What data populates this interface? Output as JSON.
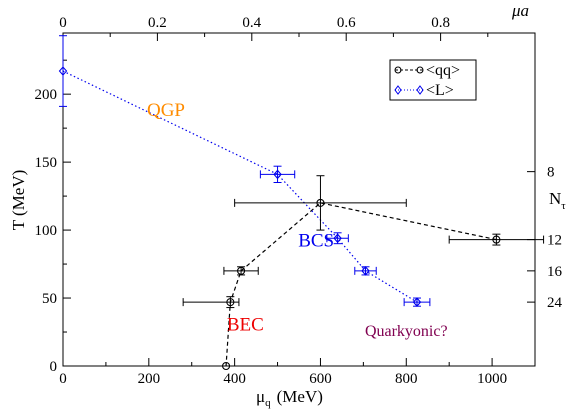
{
  "chart_data": {
    "type": "scatter",
    "x_axis": {
      "label": "μ",
      "label_sub": "q",
      "unit": "(MeV)",
      "range": [
        0,
        1100
      ],
      "ticks": [
        0,
        200,
        400,
        600,
        800,
        1000
      ],
      "tick_labels": [
        "0",
        "200",
        "400",
        "600",
        "800",
        "1000"
      ]
    },
    "y_axis": {
      "label": "T (MeV)",
      "range": [
        0,
        245
      ],
      "ticks": [
        0,
        50,
        100,
        150,
        200
      ],
      "tick_labels": [
        "0",
        "50",
        "100",
        "150",
        "200"
      ]
    },
    "top_axis": {
      "label": "μa",
      "range": [
        0,
        1.0
      ],
      "ticks": [
        0,
        0.2,
        0.4,
        0.6,
        0.8
      ],
      "tick_labels": [
        "0",
        "0.2",
        "0.4",
        "0.6",
        "0.8"
      ]
    },
    "right_axis": {
      "label": "N",
      "label_sub": "τ",
      "ticks": [
        8,
        12,
        16,
        24
      ],
      "tick_labels": [
        "8",
        "12",
        "16",
        "24"
      ],
      "tick_positions_T": [
        143,
        93,
        70,
        47
      ]
    },
    "series": [
      {
        "name": "<qq>",
        "color": "#000000",
        "line": "dashed",
        "marker": "circle",
        "points": [
          {
            "x": 1010,
            "y": 93,
            "xerr": 110,
            "yerr": 4
          },
          {
            "x": 600,
            "y": 120,
            "xerr": 200,
            "yerr": 20
          },
          {
            "x": 415,
            "y": 70,
            "xerr": 40,
            "yerr": 3
          },
          {
            "x": 390,
            "y": 47,
            "xerr": 20,
            "yerr": 4,
            "xerr_lo": 110
          },
          {
            "x": 380,
            "y": 0,
            "xerr": 0,
            "yerr": 0
          }
        ]
      },
      {
        "name": "<L>",
        "color": "#0000ee",
        "line": "dotted",
        "marker": "diamond",
        "points": [
          {
            "x": 0,
            "y": 217,
            "xerr": 0,
            "yerr": 26
          },
          {
            "x": 500,
            "y": 141,
            "xerr": 40,
            "yerr": 6
          },
          {
            "x": 640,
            "y": 94,
            "xerr": 25,
            "yerr": 4
          },
          {
            "x": 705,
            "y": 70,
            "xerr": 25,
            "yerr": 3
          },
          {
            "x": 825,
            "y": 47,
            "xerr": 30,
            "yerr": 3
          }
        ]
      }
    ],
    "legend": {
      "position": "top-right",
      "entries": [
        "<qq>",
        "<L>"
      ]
    },
    "annotations": [
      {
        "text": "QGP",
        "x": 240,
        "y": 184,
        "color": "#ff8c00"
      },
      {
        "text": "BCS",
        "x": 590,
        "y": 88,
        "color": "#0000ee"
      },
      {
        "text": "BEC",
        "x": 425,
        "y": 26,
        "color": "#ee0000"
      },
      {
        "text": "Quarkyonic?",
        "x": 800,
        "y": 22,
        "color": "#800050"
      }
    ]
  }
}
